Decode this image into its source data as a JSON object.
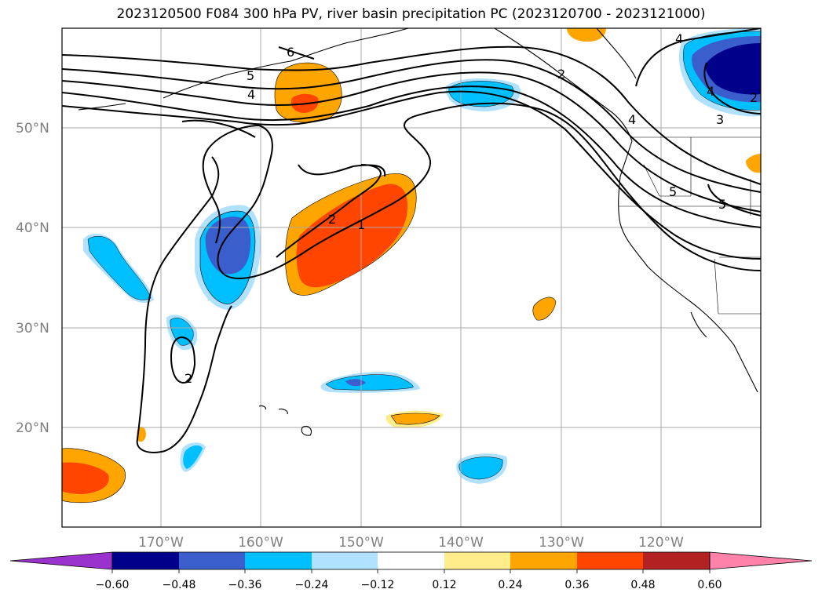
{
  "title": "2023120500 F084 300 hPa PV, river basin precipitation PC (2023120700 - 2023121000)",
  "lat_labels": [
    "50°N",
    "40°N",
    "30°N",
    "20°N"
  ],
  "lon_labels": [
    "170°W",
    "160°W",
    "150°W",
    "140°W",
    "130°W",
    "120°W"
  ],
  "colorbar": {
    "ticks": [
      "−0.60",
      "−0.48",
      "−0.36",
      "−0.24",
      "−0.12",
      "0.12",
      "0.24",
      "0.36",
      "0.48",
      "0.60"
    ],
    "colors": [
      "#9a32cd",
      "#00008b",
      "#3a5fcd",
      "#00bfff",
      "#b0e2ff",
      "#ffffff",
      "#ffec8b",
      "#ffa500",
      "#ff4500",
      "#b22222",
      "#ff82ab"
    ]
  },
  "contour_labels": [
    "6",
    "5",
    "4",
    "2",
    "1",
    "2",
    "4",
    "4",
    "5",
    "2",
    "5",
    "4",
    "3",
    "2"
  ]
}
